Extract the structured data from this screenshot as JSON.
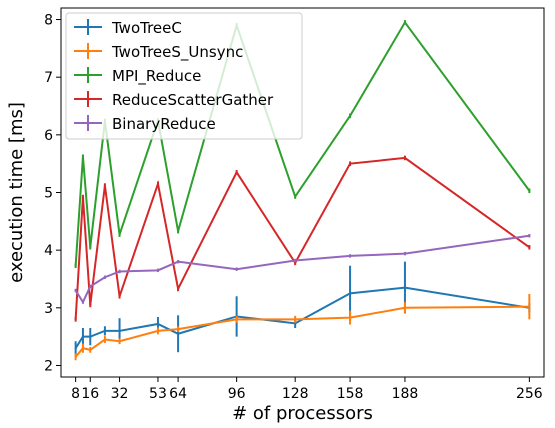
{
  "chart_data": {
    "type": "line",
    "title": "",
    "xlabel": "# of processors",
    "ylabel": "execution time [ms]",
    "xlim": [
      0,
      264
    ],
    "ylim": [
      1.8,
      8.2
    ],
    "xticks": [
      {
        "value": 8,
        "label": "8"
      },
      {
        "value": 16,
        "label": "16"
      },
      {
        "value": 32,
        "label": "32"
      },
      {
        "value": 53,
        "label": "53"
      },
      {
        "value": 64,
        "label": "64"
      },
      {
        "value": 96,
        "label": "96"
      },
      {
        "value": 128,
        "label": "128"
      },
      {
        "value": 158,
        "label": "158"
      },
      {
        "value": 188,
        "label": "188"
      },
      {
        "value": 256,
        "label": "256"
      }
    ],
    "yticks": [
      2,
      3,
      4,
      5,
      6,
      7,
      8
    ],
    "grid": false,
    "legend_position": "top-left",
    "x": [
      8,
      12,
      16,
      24,
      32,
      53,
      64,
      96,
      128,
      158,
      188,
      256
    ],
    "series": [
      {
        "name": "TwoTreeC",
        "color": "#1f77b4",
        "values": [
          2.3,
          2.5,
          2.5,
          2.6,
          2.6,
          2.72,
          2.55,
          2.85,
          2.73,
          3.25,
          3.35,
          3.0
        ],
        "errors": [
          0.12,
          0.15,
          0.15,
          0.08,
          0.22,
          0.12,
          0.32,
          0.35,
          0.08,
          0.48,
          0.45,
          0.08
        ]
      },
      {
        "name": "TwoTreeS_Unsync",
        "color": "#ff7f0e",
        "values": [
          2.15,
          2.3,
          2.27,
          2.45,
          2.42,
          2.6,
          2.63,
          2.8,
          2.8,
          2.83,
          3.0,
          3.02
        ],
        "errors": [
          0.06,
          0.08,
          0.05,
          0.06,
          0.05,
          0.06,
          0.05,
          0.06,
          0.06,
          0.12,
          0.1,
          0.22
        ]
      },
      {
        "name": "MPI_Reduce",
        "color": "#2ca02c",
        "values": [
          3.73,
          5.62,
          4.05,
          6.24,
          4.27,
          6.25,
          4.33,
          7.9,
          4.93,
          6.33,
          7.95,
          5.03
        ],
        "errors": [
          0.04,
          0.04,
          0.04,
          0.04,
          0.04,
          0.04,
          0.04,
          0.04,
          0.04,
          0.04,
          0.04,
          0.04
        ]
      },
      {
        "name": "ReduceScatterGather",
        "color": "#d62728",
        "values": [
          2.8,
          4.92,
          3.05,
          5.12,
          3.2,
          5.15,
          3.33,
          5.35,
          3.78,
          5.5,
          5.6,
          4.05
        ],
        "errors": [
          0.04,
          0.04,
          0.04,
          0.04,
          0.04,
          0.04,
          0.04,
          0.04,
          0.04,
          0.04,
          0.04,
          0.04
        ]
      },
      {
        "name": "BinaryReduce",
        "color": "#9467bd",
        "values": [
          3.3,
          3.1,
          3.37,
          3.53,
          3.63,
          3.65,
          3.8,
          3.67,
          3.82,
          3.9,
          3.94,
          4.25
        ],
        "errors": [
          0.03,
          0.03,
          0.03,
          0.03,
          0.03,
          0.03,
          0.03,
          0.03,
          0.03,
          0.03,
          0.03,
          0.03
        ]
      }
    ]
  }
}
